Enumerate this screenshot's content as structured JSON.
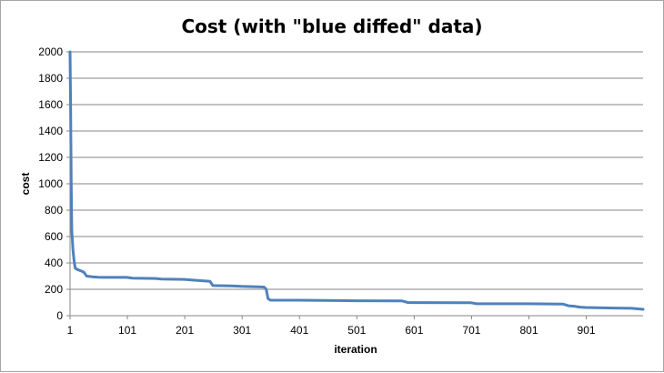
{
  "chart_data": {
    "type": "line",
    "title": "Cost (with \"blue diffed\" data)",
    "xlabel": "iteration",
    "ylabel": "cost",
    "ylim": [
      0,
      2000
    ],
    "xlim": [
      1,
      1000
    ],
    "grid": "horizontal",
    "legend": "none",
    "y_ticks": [
      0,
      200,
      400,
      600,
      800,
      1000,
      1200,
      1400,
      1600,
      1800,
      2000
    ],
    "x_ticks": [
      1,
      101,
      201,
      301,
      401,
      501,
      601,
      701,
      801,
      901
    ],
    "series": [
      {
        "color": "#4f81bd",
        "x": [
          1,
          2,
          3,
          4,
          6,
          8,
          10,
          14,
          20,
          25,
          30,
          40,
          50,
          60,
          80,
          100,
          110,
          150,
          160,
          200,
          220,
          240,
          245,
          250,
          280,
          300,
          320,
          335,
          340,
          343,
          346,
          350,
          355,
          400,
          500,
          580,
          590,
          600,
          700,
          710,
          800,
          860,
          870,
          880,
          890,
          900,
          950,
          980,
          1000
        ],
        "y": [
          2000,
          1600,
          1000,
          650,
          500,
          420,
          360,
          350,
          340,
          330,
          300,
          295,
          292,
          290,
          290,
          290,
          285,
          282,
          278,
          275,
          268,
          262,
          260,
          228,
          226,
          222,
          220,
          218,
          215,
          200,
          130,
          118,
          117,
          117,
          113,
          112,
          100,
          99,
          98,
          90,
          90,
          88,
          75,
          72,
          65,
          62,
          58,
          56,
          48
        ]
      }
    ]
  }
}
